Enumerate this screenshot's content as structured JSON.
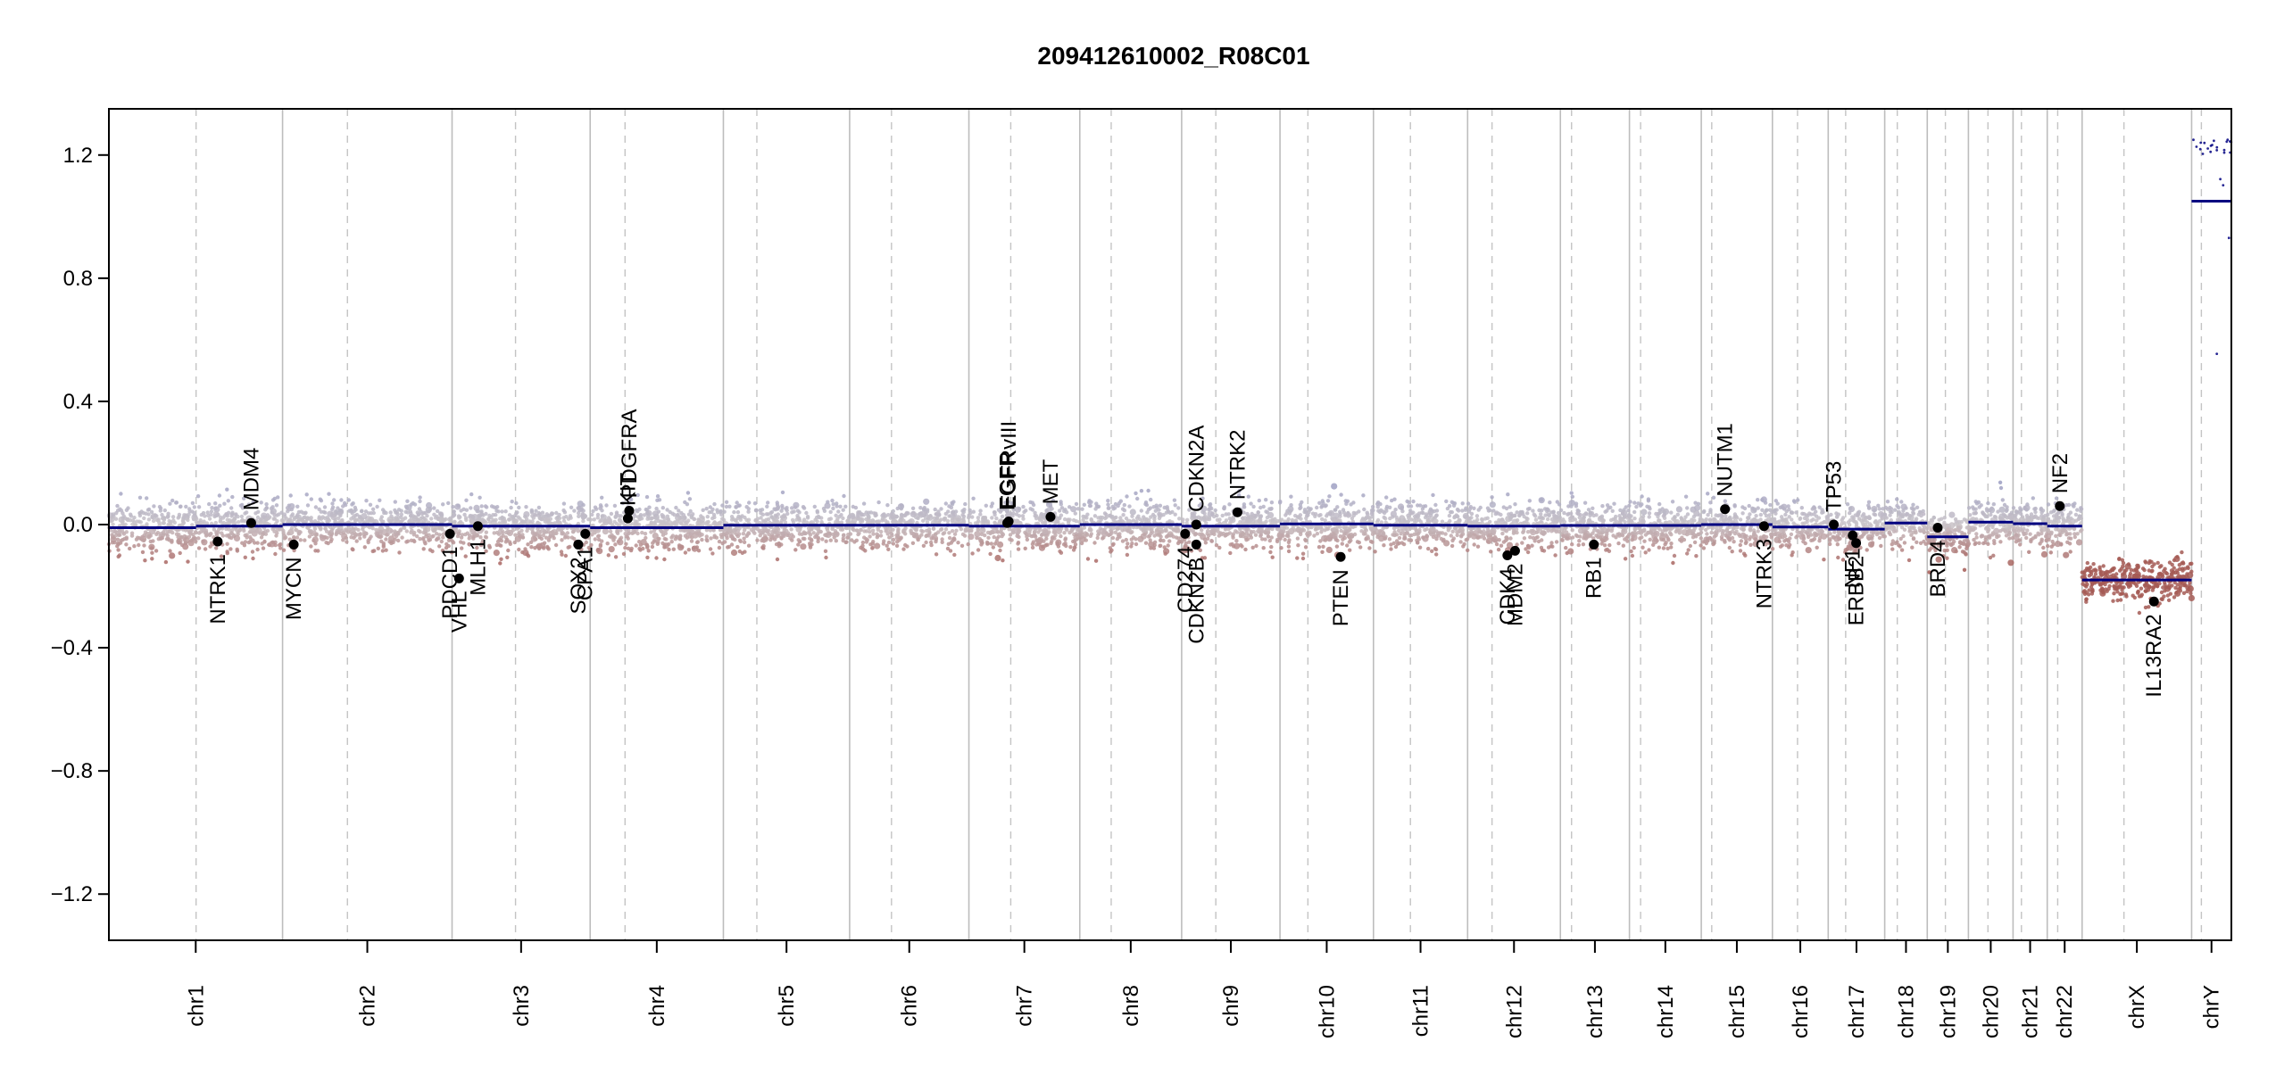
{
  "chart_data": {
    "type": "scatter",
    "title": "209412610002_R08C01",
    "xlabel": "",
    "ylabel": "",
    "ylim": [
      -1.35,
      1.35
    ],
    "yticks": [
      -1.2,
      -0.8,
      -0.4,
      0.0,
      0.4,
      0.8,
      1.2
    ],
    "ytick_labels": [
      "−1.2",
      "−0.8",
      "−0.4",
      "0.0",
      "0.4",
      "0.8",
      "1.2"
    ],
    "grid": false,
    "colors": {
      "gain": "#9a9cc2",
      "loss": "#a55a55",
      "neutral": "#c9c3c8",
      "segment": "#000080",
      "gene_dot": "#000000",
      "boundary": "#bdbdbd",
      "centromere": "#c4c4c4",
      "axis": "#000000"
    },
    "chromosomes": [
      {
        "name": "chr1",
        "start": 0,
        "centro": 125,
        "end": 249
      },
      {
        "name": "chr2",
        "start": 249,
        "centro": 342,
        "end": 492
      },
      {
        "name": "chr3",
        "start": 492,
        "centro": 583,
        "end": 690
      },
      {
        "name": "chr4",
        "start": 690,
        "centro": 740,
        "end": 881
      },
      {
        "name": "chr5",
        "start": 881,
        "centro": 929,
        "end": 1062
      },
      {
        "name": "chr6",
        "start": 1062,
        "centro": 1122,
        "end": 1233
      },
      {
        "name": "chr7",
        "start": 1233,
        "centro": 1293,
        "end": 1392
      },
      {
        "name": "chr8",
        "start": 1392,
        "centro": 1437,
        "end": 1538
      },
      {
        "name": "chr9",
        "start": 1538,
        "centro": 1587,
        "end": 1679
      },
      {
        "name": "chr10",
        "start": 1679,
        "centro": 1719,
        "end": 1813
      },
      {
        "name": "chr11",
        "start": 1813,
        "centro": 1866,
        "end": 1948
      },
      {
        "name": "chr12",
        "start": 1948,
        "centro": 1983,
        "end": 2081
      },
      {
        "name": "chr13",
        "start": 2081,
        "centro": 2097,
        "end": 2180
      },
      {
        "name": "chr14",
        "start": 2180,
        "centro": 2196,
        "end": 2283
      },
      {
        "name": "chr15",
        "start": 2283,
        "centro": 2298,
        "end": 2385
      },
      {
        "name": "chr16",
        "start": 2385,
        "centro": 2421,
        "end": 2465
      },
      {
        "name": "chr17",
        "start": 2465,
        "centro": 2490,
        "end": 2546
      },
      {
        "name": "chr18",
        "start": 2546,
        "centro": 2564,
        "end": 2607
      },
      {
        "name": "chr19",
        "start": 2607,
        "centro": 2633,
        "end": 2666
      },
      {
        "name": "chr20",
        "start": 2666,
        "centro": 2694,
        "end": 2730
      },
      {
        "name": "chr21",
        "start": 2730,
        "centro": 2742,
        "end": 2779
      },
      {
        "name": "chr22",
        "start": 2779,
        "centro": 2794,
        "end": 2829
      },
      {
        "name": "chrX",
        "start": 2829,
        "centro": 2889,
        "end": 2986
      },
      {
        "name": "chrY",
        "start": 2986,
        "centro": 3000,
        "end": 3043
      }
    ],
    "segments": [
      {
        "x0": 0,
        "x1": 125,
        "y": -0.01
      },
      {
        "x0": 125,
        "x1": 249,
        "y": -0.005
      },
      {
        "x0": 249,
        "x1": 492,
        "y": 0.0
      },
      {
        "x0": 492,
        "x1": 690,
        "y": -0.005
      },
      {
        "x0": 690,
        "x1": 881,
        "y": -0.01
      },
      {
        "x0": 881,
        "x1": 1233,
        "y": -0.002
      },
      {
        "x0": 1233,
        "x1": 1392,
        "y": -0.005
      },
      {
        "x0": 1392,
        "x1": 1538,
        "y": 0.0
      },
      {
        "x0": 1538,
        "x1": 1679,
        "y": -0.005
      },
      {
        "x0": 1679,
        "x1": 1813,
        "y": 0.002
      },
      {
        "x0": 1813,
        "x1": 1948,
        "y": -0.002
      },
      {
        "x0": 1948,
        "x1": 2081,
        "y": -0.005
      },
      {
        "x0": 2081,
        "x1": 2283,
        "y": -0.003
      },
      {
        "x0": 2283,
        "x1": 2385,
        "y": 0.0
      },
      {
        "x0": 2385,
        "x1": 2465,
        "y": -0.008
      },
      {
        "x0": 2465,
        "x1": 2546,
        "y": -0.015
      },
      {
        "x0": 2546,
        "x1": 2607,
        "y": 0.005
      },
      {
        "x0": 2607,
        "x1": 2666,
        "y": -0.04
      },
      {
        "x0": 2666,
        "x1": 2730,
        "y": 0.008
      },
      {
        "x0": 2730,
        "x1": 2779,
        "y": 0.003
      },
      {
        "x0": 2779,
        "x1": 2829,
        "y": -0.005
      },
      {
        "x0": 2829,
        "x1": 2986,
        "y": -0.18
      },
      {
        "x0": 2986,
        "x1": 3043,
        "y": 1.05
      }
    ],
    "genes": [
      {
        "name": "NTRK1",
        "x": 156,
        "y": -0.055,
        "side": "below"
      },
      {
        "name": "MDM4",
        "x": 204,
        "y": 0.005,
        "side": "above"
      },
      {
        "name": "MYCN",
        "x": 265,
        "y": -0.065,
        "side": "below"
      },
      {
        "name": "PDCD1",
        "x": 489,
        "y": -0.03,
        "side": "below"
      },
      {
        "name": "VHL",
        "x": 502,
        "y": -0.175,
        "side": "below"
      },
      {
        "name": "MLH1",
        "x": 529,
        "y": -0.005,
        "side": "below"
      },
      {
        "name": "SOX2",
        "x": 673,
        "y": -0.065,
        "side": "below"
      },
      {
        "name": "CPA1",
        "x": 683,
        "y": -0.03,
        "side": "below"
      },
      {
        "name": "KIT",
        "x": 744,
        "y": 0.02,
        "side": "above"
      },
      {
        "name": "PDGFRA",
        "x": 746,
        "y": 0.045,
        "side": "above"
      },
      {
        "name": "EGFR",
        "x": 1288,
        "y": 0.005,
        "side": "above"
      },
      {
        "name": "EGFRvIII",
        "x": 1290,
        "y": 0.01,
        "side": "above"
      },
      {
        "name": "MET",
        "x": 1350,
        "y": 0.025,
        "side": "above"
      },
      {
        "name": "CD274",
        "x": 1543,
        "y": -0.03,
        "side": "below"
      },
      {
        "name": "CDKN2B",
        "x": 1559,
        "y": -0.065,
        "side": "below"
      },
      {
        "name": "CDKN2A",
        "x": 1559,
        "y": 0.0,
        "side": "above"
      },
      {
        "name": "NTRK2",
        "x": 1618,
        "y": 0.04,
        "side": "above"
      },
      {
        "name": "PTEN",
        "x": 1766,
        "y": -0.105,
        "side": "below"
      },
      {
        "name": "CDK4",
        "x": 2005,
        "y": -0.1,
        "side": "below"
      },
      {
        "name": "MDM2",
        "x": 2016,
        "y": -0.085,
        "side": "below"
      },
      {
        "name": "RB1",
        "x": 2129,
        "y": -0.065,
        "side": "below"
      },
      {
        "name": "NUTM1",
        "x": 2317,
        "y": 0.05,
        "side": "above"
      },
      {
        "name": "NTRK3",
        "x": 2373,
        "y": -0.005,
        "side": "below"
      },
      {
        "name": "TP53",
        "x": 2473,
        "y": 0.0,
        "side": "above"
      },
      {
        "name": "NF1",
        "x": 2500,
        "y": -0.035,
        "side": "below"
      },
      {
        "name": "ERBB2",
        "x": 2505,
        "y": -0.06,
        "side": "below"
      },
      {
        "name": "BRD4",
        "x": 2622,
        "y": -0.01,
        "side": "below"
      },
      {
        "name": "NF2",
        "x": 2797,
        "y": 0.06,
        "side": "above"
      },
      {
        "name": "IL13RA2",
        "x": 2932,
        "y": -0.25,
        "side": "below"
      }
    ]
  }
}
